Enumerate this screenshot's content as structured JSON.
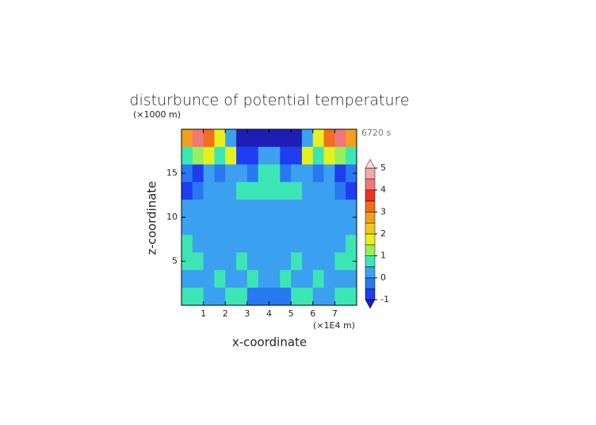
{
  "chart_data": {
    "type": "contour",
    "title": "disturbunce of potential temperature",
    "y_unit": "(×1000 m)",
    "x_unit": "(×1E4 m)",
    "time_label": "6720 s",
    "xlabel": "x-coordinate",
    "ylabel": "z-coordinate",
    "xlim": [
      0,
      8
    ],
    "ylim": [
      0,
      20
    ],
    "xticks": [
      1,
      2,
      3,
      4,
      5,
      6,
      7
    ],
    "yticks": [
      5,
      10,
      15
    ],
    "x": [
      0.25,
      0.75,
      1.25,
      1.75,
      2.25,
      2.75,
      3.25,
      3.75,
      4.25,
      4.75,
      5.25,
      5.75,
      6.25,
      6.75,
      7.25,
      7.75
    ],
    "y": [
      19,
      17,
      15,
      13,
      11,
      9,
      7,
      5,
      3,
      1
    ],
    "z": [
      [
        2.5,
        4,
        3,
        1.5,
        0.2,
        -1.2,
        -1.2,
        -1.2,
        -1.2,
        -1.2,
        -1.2,
        0.2,
        1.5,
        3,
        4,
        2.5
      ],
      [
        0.8,
        1.2,
        1.8,
        0.8,
        1.5,
        -0.8,
        -0.8,
        0.2,
        0.2,
        -0.8,
        -0.8,
        1.5,
        0.8,
        1.8,
        1.2,
        0.8
      ],
      [
        -0.3,
        -0.6,
        0.2,
        -0.3,
        0.2,
        0.2,
        -0.3,
        0.7,
        0.7,
        -0.3,
        0.2,
        0.2,
        -0.3,
        0.2,
        -0.6,
        -0.3
      ],
      [
        -0.6,
        -0.3,
        0.2,
        0.2,
        0.2,
        0.7,
        0.7,
        0.7,
        0.7,
        0.7,
        0.7,
        0.2,
        0.2,
        0.2,
        -0.3,
        -0.6
      ],
      [
        0.2,
        0.2,
        0.2,
        0.2,
        0.2,
        0.2,
        0.2,
        0.2,
        0.2,
        0.2,
        0.2,
        0.2,
        0.2,
        0.2,
        0.2,
        0.2
      ],
      [
        0.2,
        0.2,
        0.2,
        0.2,
        0.2,
        0.2,
        0.2,
        0.2,
        0.2,
        0.2,
        0.2,
        0.2,
        0.2,
        0.2,
        0.2,
        0.2
      ],
      [
        0.7,
        0.2,
        0.2,
        0.2,
        0.2,
        0.2,
        0.2,
        0.2,
        0.2,
        0.2,
        0.2,
        0.2,
        0.2,
        0.2,
        0.2,
        0.7
      ],
      [
        0.7,
        0.7,
        0.2,
        0.2,
        0.2,
        0.7,
        0.2,
        0.2,
        0.2,
        0.2,
        0.7,
        0.2,
        0.2,
        0.2,
        0.7,
        0.7
      ],
      [
        0.2,
        0.2,
        0.2,
        0.7,
        0.2,
        0.2,
        0.7,
        0.2,
        0.2,
        0.7,
        0.2,
        0.2,
        0.7,
        0.2,
        0.2,
        0.2
      ],
      [
        0.7,
        0.7,
        0.2,
        0.2,
        0.7,
        0.7,
        -0.3,
        -0.3,
        -0.3,
        -0.3,
        0.7,
        0.7,
        0.2,
        0.2,
        0.7,
        0.7
      ]
    ],
    "colorbar": {
      "levels": [
        -1,
        -0.5,
        0,
        0.5,
        1,
        1.5,
        2,
        2.5,
        3,
        3.5,
        4,
        4.5,
        5
      ],
      "ticks": [
        -1,
        0,
        1,
        2,
        3,
        4,
        5
      ],
      "colors": [
        "#1e1eb4",
        "#1e3cf0",
        "#2878f0",
        "#3ca0f0",
        "#3ce6b4",
        "#96f05a",
        "#e6f01e",
        "#f0c81e",
        "#f0a01e",
        "#f06e1e",
        "#f0321e",
        "#f07878",
        "#f0aaaa",
        "#f5dcdc"
      ]
    }
  }
}
